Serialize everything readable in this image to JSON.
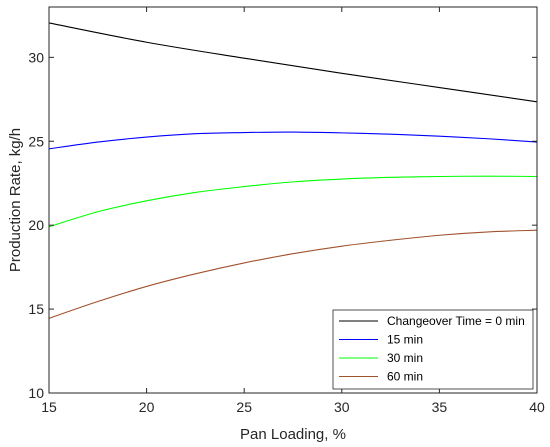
{
  "chart_data": {
    "type": "line",
    "title": "",
    "xlabel": "Pan Loading, %",
    "ylabel": "Production Rate, kg/h",
    "xlim": [
      15,
      40
    ],
    "ylim": [
      10,
      33
    ],
    "x_ticks": [
      15,
      20,
      25,
      30,
      35,
      40
    ],
    "y_ticks": [
      10,
      15,
      20,
      25,
      30
    ],
    "grid": false,
    "legend_position": "bottom-right",
    "series": [
      {
        "name": "Changeover Time = 0 min",
        "color": "#000000",
        "x": [
          15,
          20,
          25,
          30,
          35,
          40
        ],
        "values": [
          32.05,
          30.9,
          29.95,
          29.05,
          28.2,
          27.35
        ]
      },
      {
        "name": "15 min",
        "color": "#0000ff",
        "x": [
          15,
          17.5,
          20,
          22.5,
          25,
          27.5,
          30,
          32.5,
          35,
          37.5,
          40
        ],
        "values": [
          24.55,
          24.95,
          25.25,
          25.45,
          25.52,
          25.55,
          25.5,
          25.42,
          25.3,
          25.15,
          24.95
        ]
      },
      {
        "name": "30 min",
        "color": "#00ff00",
        "x": [
          15,
          17.5,
          20,
          22.5,
          25,
          27.5,
          30,
          32.5,
          35,
          37.5,
          40
        ],
        "values": [
          19.9,
          20.8,
          21.45,
          21.95,
          22.3,
          22.58,
          22.75,
          22.85,
          22.9,
          22.92,
          22.9
        ]
      },
      {
        "name": "60 min",
        "color": "#a0522d",
        "x": [
          15,
          17.5,
          20,
          22.5,
          25,
          27.5,
          30,
          32.5,
          35,
          37.5,
          40
        ],
        "values": [
          14.45,
          15.45,
          16.35,
          17.1,
          17.75,
          18.3,
          18.75,
          19.1,
          19.4,
          19.6,
          19.7
        ]
      }
    ]
  }
}
